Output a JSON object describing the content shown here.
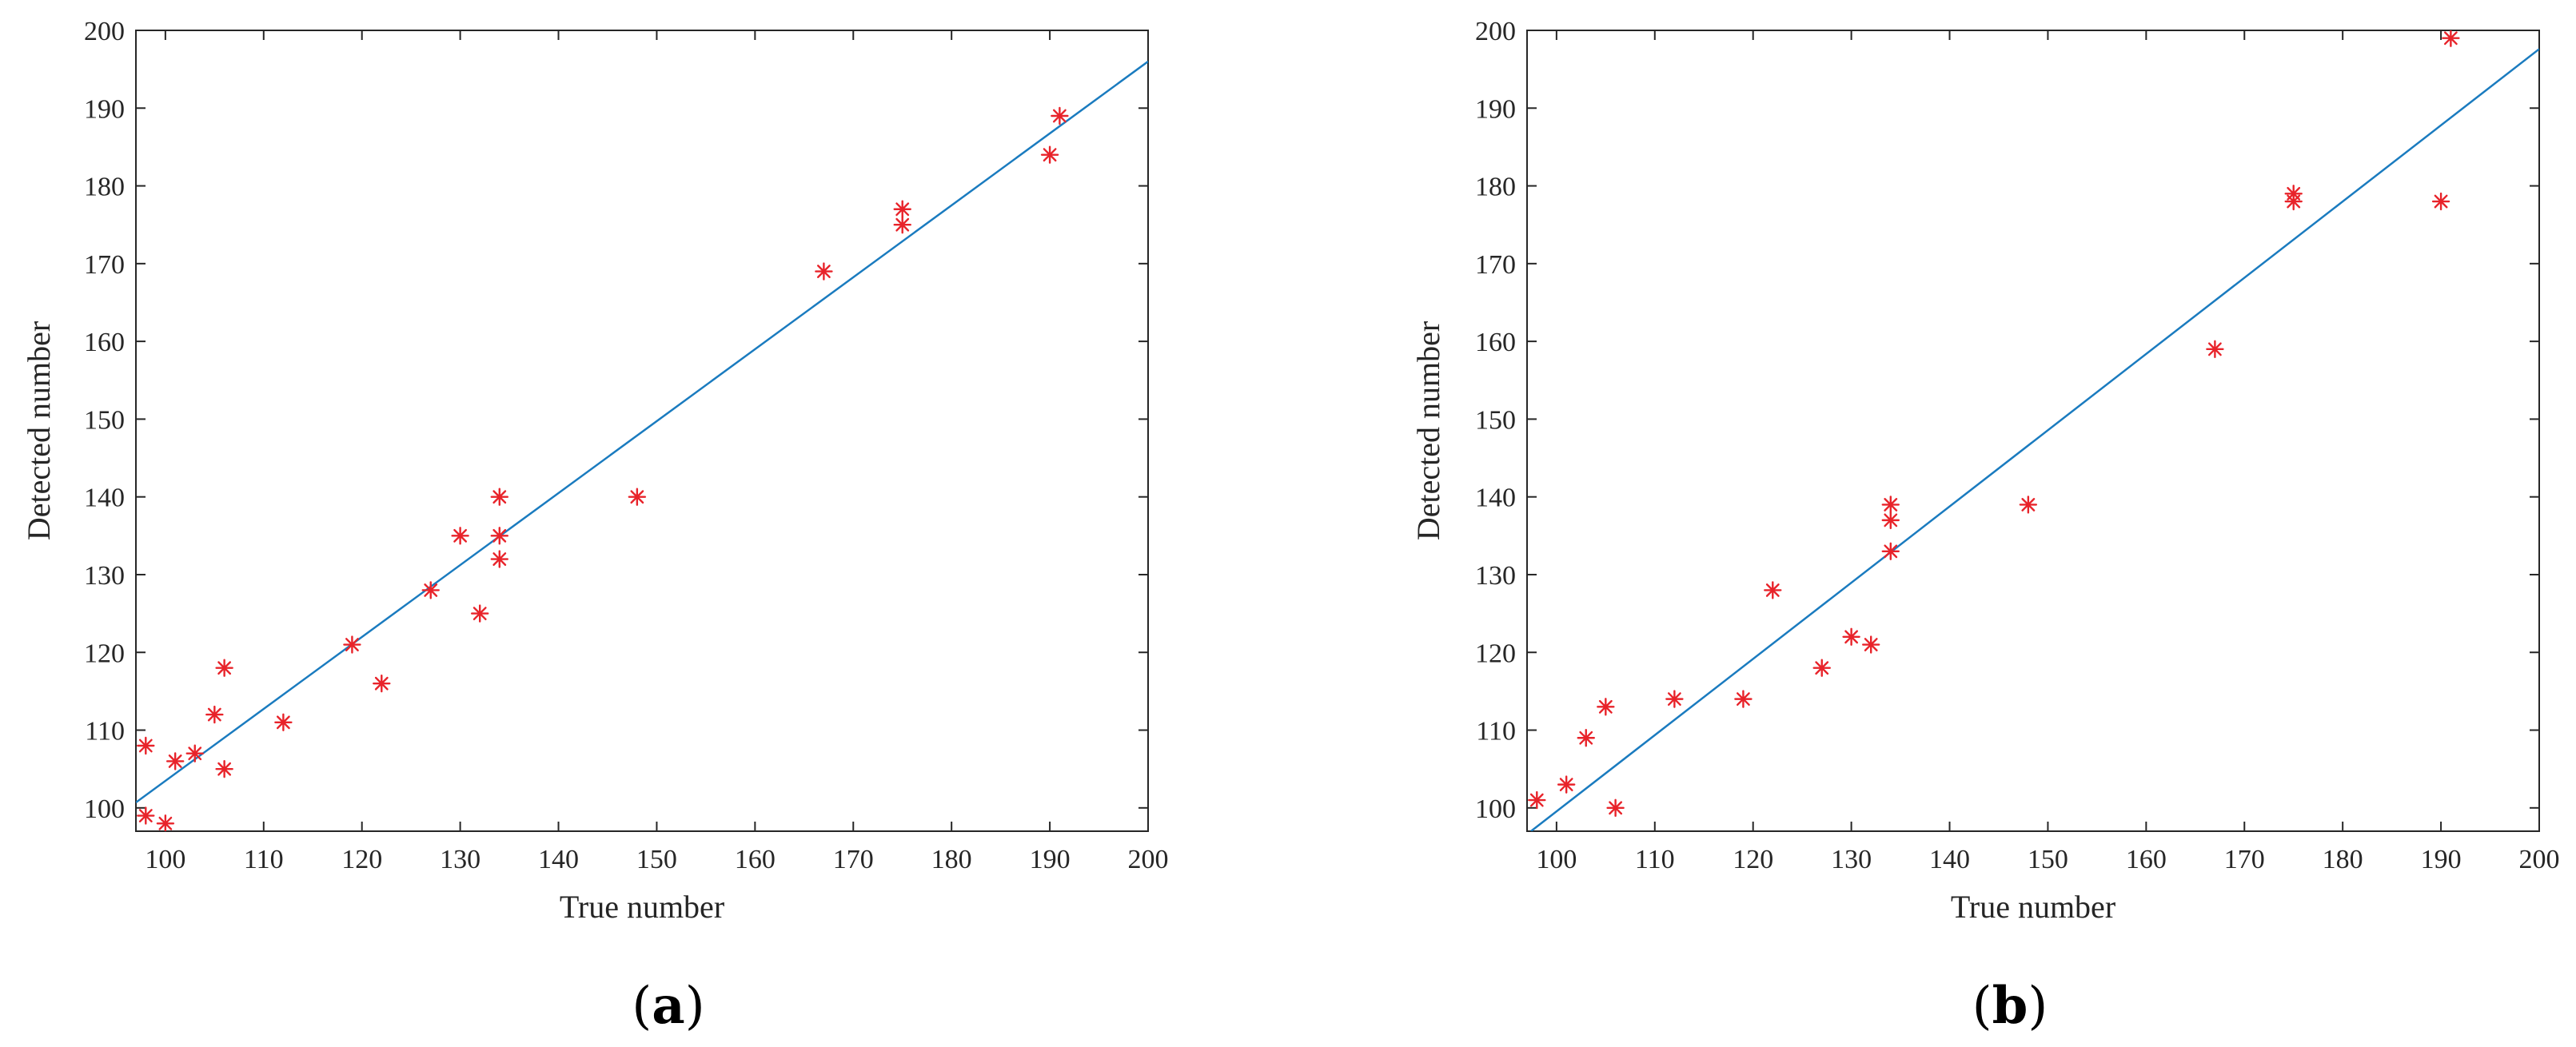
{
  "chart_data": [
    {
      "type": "scatter",
      "panel_label": "a",
      "xlabel": "True number",
      "ylabel": "Detected number",
      "xlim": [
        97,
        200
      ],
      "ylim": [
        97,
        200
      ],
      "xticks": [
        100,
        110,
        120,
        130,
        140,
        150,
        160,
        170,
        180,
        190,
        200
      ],
      "yticks": [
        100,
        110,
        120,
        130,
        140,
        150,
        160,
        170,
        180,
        190,
        200
      ],
      "grid": false,
      "marker": "asterisk",
      "marker_color": "#e8232a",
      "line_color": "#1a7bbf",
      "points": [
        {
          "x": 98,
          "y": 108
        },
        {
          "x": 98,
          "y": 99
        },
        {
          "x": 100,
          "y": 98
        },
        {
          "x": 101,
          "y": 106
        },
        {
          "x": 103,
          "y": 107
        },
        {
          "x": 105,
          "y": 112
        },
        {
          "x": 106,
          "y": 118
        },
        {
          "x": 106,
          "y": 105
        },
        {
          "x": 112,
          "y": 111
        },
        {
          "x": 119,
          "y": 121
        },
        {
          "x": 122,
          "y": 116
        },
        {
          "x": 127,
          "y": 128
        },
        {
          "x": 130,
          "y": 135
        },
        {
          "x": 132,
          "y": 125
        },
        {
          "x": 134,
          "y": 140
        },
        {
          "x": 134,
          "y": 135
        },
        {
          "x": 134,
          "y": 132
        },
        {
          "x": 148,
          "y": 140
        },
        {
          "x": 167,
          "y": 169
        },
        {
          "x": 175,
          "y": 177
        },
        {
          "x": 175,
          "y": 175
        },
        {
          "x": 190,
          "y": 184
        },
        {
          "x": 191,
          "y": 189
        }
      ],
      "fit_line": [
        {
          "x": 97,
          "y": 100.7
        },
        {
          "x": 200,
          "y": 196
        }
      ]
    },
    {
      "type": "scatter",
      "panel_label": "b",
      "xlabel": "True number",
      "ylabel": "Detected number",
      "xlim": [
        97,
        200
      ],
      "ylim": [
        97,
        200
      ],
      "xticks": [
        100,
        110,
        120,
        130,
        140,
        150,
        160,
        170,
        180,
        190,
        200
      ],
      "yticks": [
        100,
        110,
        120,
        130,
        140,
        150,
        160,
        170,
        180,
        190,
        200
      ],
      "grid": false,
      "marker": "asterisk",
      "marker_color": "#e8232a",
      "line_color": "#1a7bbf",
      "points": [
        {
          "x": 98,
          "y": 101
        },
        {
          "x": 101,
          "y": 103
        },
        {
          "x": 103,
          "y": 109
        },
        {
          "x": 105,
          "y": 113
        },
        {
          "x": 106,
          "y": 100
        },
        {
          "x": 112,
          "y": 114
        },
        {
          "x": 119,
          "y": 114
        },
        {
          "x": 122,
          "y": 128
        },
        {
          "x": 127,
          "y": 118
        },
        {
          "x": 130,
          "y": 122
        },
        {
          "x": 132,
          "y": 121
        },
        {
          "x": 134,
          "y": 139
        },
        {
          "x": 134,
          "y": 137
        },
        {
          "x": 134,
          "y": 133
        },
        {
          "x": 148,
          "y": 139
        },
        {
          "x": 167,
          "y": 159
        },
        {
          "x": 175,
          "y": 179
        },
        {
          "x": 175,
          "y": 178
        },
        {
          "x": 190,
          "y": 178
        },
        {
          "x": 191,
          "y": 199
        }
      ],
      "fit_line": [
        {
          "x": 97.4,
          "y": 97
        },
        {
          "x": 200,
          "y": 197.6
        }
      ]
    }
  ]
}
